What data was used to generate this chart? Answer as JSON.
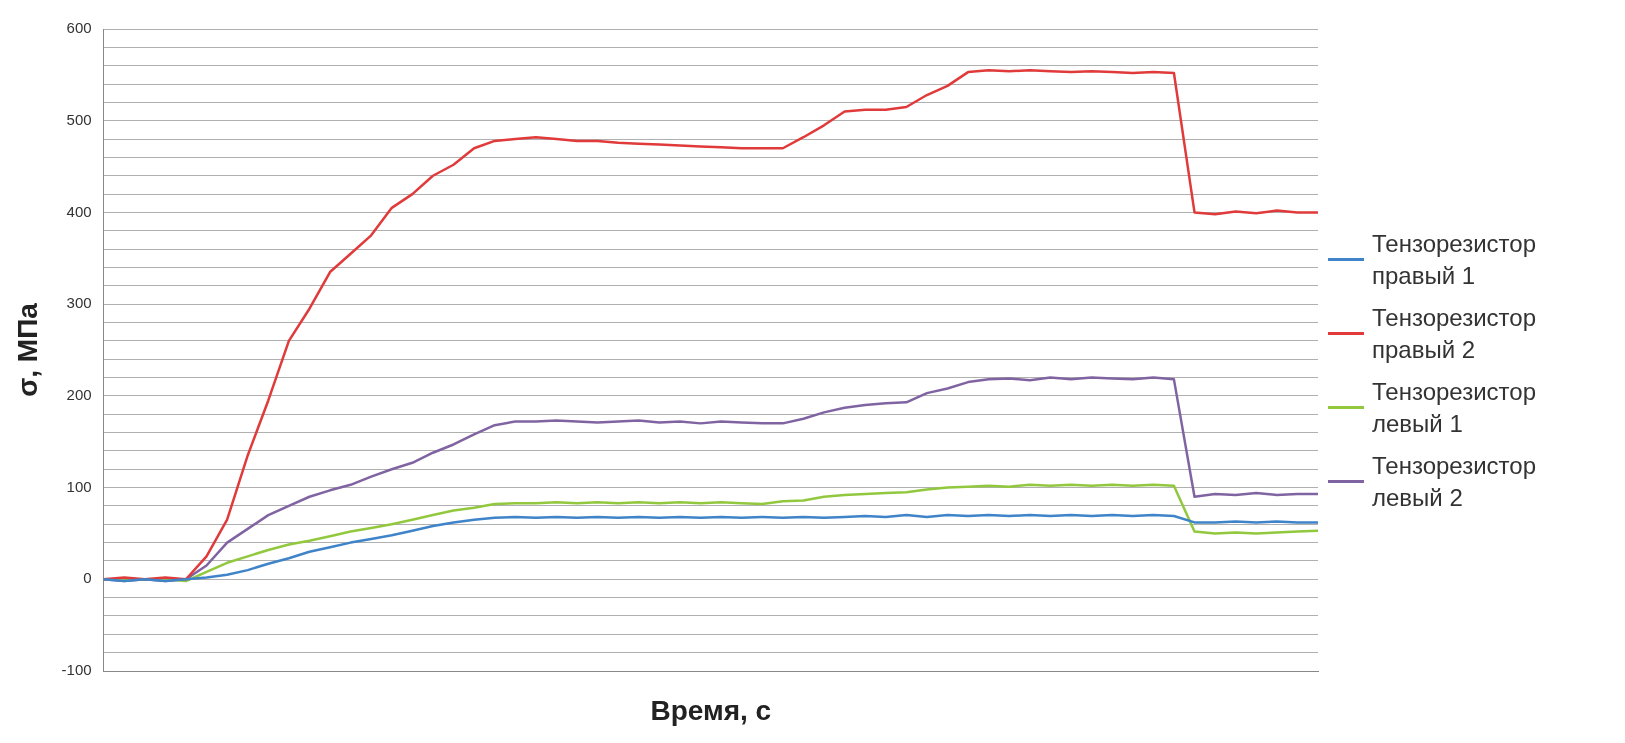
{
  "chart_data": {
    "type": "line",
    "xlabel": "Время, с",
    "ylabel": "σ, МПа",
    "categories": [
      null,
      null,
      null,
      null,
      null,
      null,
      null,
      null,
      null,
      null,
      null,
      null,
      null,
      null,
      null,
      null,
      null,
      null,
      null,
      null,
      null,
      null,
      null,
      null,
      null,
      null,
      null,
      null,
      null,
      null,
      null,
      null,
      null,
      null,
      null,
      null,
      null,
      null,
      null,
      null,
      null,
      null,
      null,
      null,
      null,
      null,
      null,
      null,
      null,
      null,
      null,
      null,
      null,
      null,
      null,
      null,
      null,
      null,
      null,
      null
    ],
    "series": [
      {
        "name": "Тензорезистор правый 1",
        "color": "#3f83c8",
        "values": [
          0,
          -2,
          0,
          -2,
          0,
          2,
          5,
          10,
          17,
          23,
          30,
          35,
          40,
          44,
          48,
          53,
          58,
          62,
          65,
          67,
          68,
          67,
          68,
          67,
          68,
          67,
          68,
          67,
          68,
          67,
          68,
          67,
          68,
          67,
          68,
          67,
          68,
          69,
          68,
          70,
          68,
          70,
          69,
          70,
          69,
          70,
          69,
          70,
          69,
          70,
          69,
          70,
          69,
          62,
          62,
          63,
          62,
          63,
          62,
          62
        ]
      },
      {
        "name": "Тензорезистор правый 2",
        "color": "#e03a3a",
        "values": [
          0,
          2,
          0,
          2,
          0,
          25,
          65,
          135,
          195,
          260,
          295,
          335,
          355,
          375,
          405,
          420,
          440,
          452,
          470,
          478,
          480,
          482,
          480,
          478,
          478,
          476,
          475,
          474,
          473,
          472,
          471,
          470,
          470,
          470,
          482,
          495,
          510,
          512,
          512,
          515,
          528,
          538,
          553,
          555,
          554,
          555,
          554,
          553,
          554,
          553,
          552,
          553,
          552,
          400,
          398,
          401,
          399,
          402,
          400,
          400
        ]
      },
      {
        "name": "Тензорезистор левый 1",
        "color": "#92c83e",
        "values": [
          0,
          0,
          0,
          0,
          -2,
          8,
          18,
          25,
          32,
          38,
          42,
          47,
          52,
          56,
          60,
          65,
          70,
          75,
          78,
          82,
          83,
          83,
          84,
          83,
          84,
          83,
          84,
          83,
          84,
          83,
          84,
          83,
          82,
          85,
          86,
          90,
          92,
          93,
          94,
          95,
          98,
          100,
          101,
          102,
          101,
          103,
          102,
          103,
          102,
          103,
          102,
          103,
          102,
          52,
          50,
          51,
          50,
          51,
          52,
          53
        ]
      },
      {
        "name": "Тензорезистор левый 2",
        "color": "#8064a2",
        "values": [
          0,
          -2,
          0,
          -2,
          0,
          15,
          40,
          55,
          70,
          80,
          90,
          97,
          103,
          112,
          120,
          127,
          138,
          147,
          158,
          168,
          172,
          172,
          173,
          172,
          171,
          172,
          173,
          171,
          172,
          170,
          172,
          171,
          170,
          170,
          175,
          182,
          187,
          190,
          192,
          193,
          203,
          208,
          215,
          218,
          219,
          217,
          220,
          218,
          220,
          219,
          218,
          220,
          218,
          90,
          93,
          92,
          94,
          92,
          93,
          93
        ]
      }
    ],
    "ylim": [
      -100,
      600
    ],
    "yticks": [
      -100,
      {
        "value": -80,
        "label": null
      },
      {
        "value": -60,
        "label": null
      },
      {
        "value": -40,
        "label": null
      },
      {
        "value": -20,
        "label": null
      },
      0,
      {
        "value": 20,
        "label": null
      },
      {
        "value": 40,
        "label": null
      },
      {
        "value": 60,
        "label": null
      },
      {
        "value": 80,
        "label": null
      },
      100,
      {
        "value": 120,
        "label": null
      },
      {
        "value": 140,
        "label": null
      },
      {
        "value": 160,
        "label": null
      },
      {
        "value": 180,
        "label": null
      },
      200,
      {
        "value": 220,
        "label": null
      },
      {
        "value": 240,
        "label": null
      },
      {
        "value": 260,
        "label": null
      },
      {
        "value": 280,
        "label": null
      },
      300,
      {
        "value": 320,
        "label": null
      },
      {
        "value": 340,
        "label": null
      },
      {
        "value": 360,
        "label": null
      },
      {
        "value": 380,
        "label": null
      },
      400,
      {
        "value": 420,
        "label": null
      },
      {
        "value": 440,
        "label": null
      },
      {
        "value": 460,
        "label": null
      },
      {
        "value": 480,
        "label": null
      },
      500,
      {
        "value": 520,
        "label": null
      },
      {
        "value": 540,
        "label": null
      },
      {
        "value": 560,
        "label": null
      },
      {
        "value": 580,
        "label": null
      },
      600
    ],
    "grid": "y",
    "legend": "right",
    "marker": "none",
    "line_style": "solid"
  }
}
